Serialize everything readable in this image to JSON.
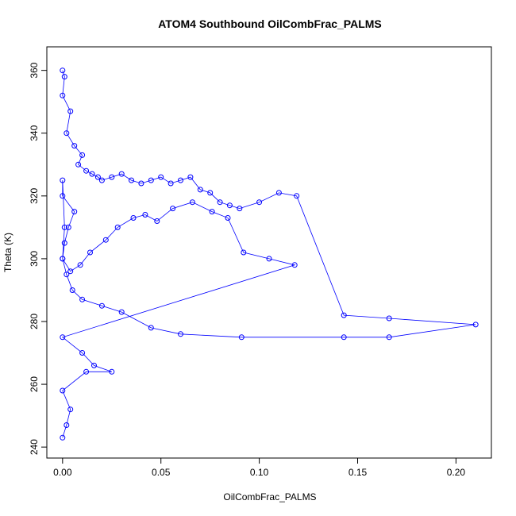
{
  "chart_data": {
    "type": "scatter",
    "title": "ATOM4 Southbound OilCombFrac_PALMS",
    "xlabel": "OilCombFrac_PALMS",
    "ylabel": "Theta (K)",
    "xlim": [
      -0.008,
      0.218
    ],
    "ylim": [
      236.5,
      367.5
    ],
    "xticks": [
      0.0,
      0.05,
      0.1,
      0.15,
      0.2
    ],
    "xtick_labels": [
      "0.00",
      "0.05",
      "0.10",
      "0.15",
      "0.20"
    ],
    "yticks": [
      240,
      260,
      280,
      300,
      320,
      340,
      360
    ],
    "ytick_labels": [
      "240",
      "260",
      "280",
      "300",
      "320",
      "340",
      "360"
    ],
    "grid": false,
    "marker": "open-circle",
    "connect_points": true,
    "series": [
      {
        "color": "#0000ff",
        "x": [
          0.0,
          0.001,
          0.0,
          0.004,
          0.002,
          0.006,
          0.01,
          0.008,
          0.012,
          0.015,
          0.018,
          0.02,
          0.025,
          0.03,
          0.035,
          0.04,
          0.045,
          0.05,
          0.055,
          0.06,
          0.065,
          0.07,
          0.075,
          0.08,
          0.085,
          0.09,
          0.1,
          0.11,
          0.119,
          0.143,
          0.166,
          0.21,
          0.166,
          0.143,
          0.091,
          0.06,
          0.045,
          0.03,
          0.02,
          0.01,
          0.005,
          0.002,
          0.0,
          0.001,
          0.003,
          0.006,
          0.0,
          0.0,
          0.001,
          0.0,
          0.004,
          0.009,
          0.014,
          0.022,
          0.028,
          0.036,
          0.042,
          0.048,
          0.056,
          0.066,
          0.076,
          0.084,
          0.092,
          0.105,
          0.118,
          0.0,
          0.01,
          0.016,
          0.025,
          0.012,
          0.0,
          0.004,
          0.002,
          0.0
        ],
        "y": [
          360,
          358,
          352,
          347,
          340,
          336,
          333,
          330,
          328,
          327,
          326,
          325,
          326,
          327,
          325,
          324,
          325,
          326,
          324,
          325,
          326,
          322,
          321,
          318,
          317,
          316,
          318,
          321,
          320,
          282,
          281,
          279,
          275,
          275,
          275,
          276,
          278,
          283,
          285,
          287,
          290,
          295,
          300,
          305,
          310,
          315,
          320,
          325,
          310,
          300,
          296,
          298,
          302,
          306,
          310,
          313,
          314,
          312,
          316,
          318,
          315,
          313,
          302,
          300,
          298,
          275,
          270,
          266,
          264,
          264,
          258,
          252,
          247,
          243
        ]
      }
    ]
  }
}
